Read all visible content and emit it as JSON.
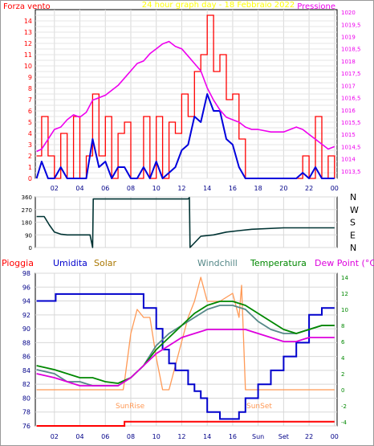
{
  "header": {
    "left_label": "Forza vento",
    "title": "24 hour graph day - 18 Febbraio 2022",
    "right_label": "Pressione"
  },
  "colors": {
    "wind_gust": "#ff0000",
    "wind_avg": "#0000dd",
    "pressure": "#ee00ee",
    "title": "#ffff00",
    "direction": "#003333",
    "rain": "#ff0000",
    "humidity": "#0000cc",
    "solar": "#ff9955",
    "windchill": "#558888",
    "temperature": "#008800",
    "dewpoint": "#dd00dd",
    "axis_red": "#ff0000",
    "axis_green": "#008800",
    "axis_blue": "#000088"
  },
  "x_ticks": [
    "02",
    "04",
    "06",
    "08",
    "10",
    "12",
    "14",
    "16",
    "18",
    "20",
    "22",
    "00"
  ],
  "bottom_x_ticks": [
    "02",
    "04",
    "06",
    "08",
    "10",
    "12",
    "14",
    "16",
    "Sun",
    "Set",
    "22",
    "00"
  ],
  "direction_labels": [
    "N",
    "W",
    "S",
    "E",
    "N"
  ],
  "bottom_legend": {
    "rain": "Pioggia",
    "humidity": "Umidita",
    "solar": "Solar",
    "windchill": "Windchill",
    "temperature": "Temperatura",
    "dewpoint": "Dew Point (°C)"
  },
  "annotations": {
    "sunrise": "SunRise",
    "sunset": "SunSet"
  },
  "chart_data": [
    {
      "type": "line",
      "title": "24 hour graph day - 18 Febbraio 2022",
      "y_left_ticks": [
        0,
        0.5,
        1,
        1.5,
        2,
        2.5,
        3,
        3.5,
        4,
        4.5,
        5,
        5.5,
        6,
        6.5,
        7,
        7.5,
        8,
        8.5,
        9,
        9.5,
        10,
        10.5,
        11,
        11.5,
        12,
        12.5,
        13,
        13.5,
        14,
        14.5
      ],
      "y_left_tick_labels": [
        "0",
        "",
        "1",
        "",
        "2",
        "",
        "3",
        "",
        "4",
        "",
        "5",
        "",
        "6",
        "",
        "7",
        "",
        "8",
        "",
        "9",
        "",
        "10",
        "",
        "11",
        "",
        "12",
        "",
        "13",
        "",
        "14",
        ""
      ],
      "y_right_ticks": [
        "1013,5",
        "1014",
        "1014,5",
        "1015",
        "1015,5",
        "1016",
        "1016,5",
        "1017",
        "1017,5",
        "1018",
        "1018,5",
        "1019",
        "1019,5",
        "1020"
      ],
      "ylim_left": [
        0,
        15
      ],
      "ylim_right": [
        1013.2,
        1020.1
      ],
      "xlim_hours": [
        0.5,
        24.2
      ],
      "series": [
        {
          "name": "Forza vento",
          "x": [
            0.6,
            1.0,
            1.5,
            2.0,
            2.5,
            3.0,
            3.5,
            4.0,
            4.5,
            5.0,
            5.5,
            6.0,
            6.5,
            7.0,
            7.5,
            8.0,
            8.5,
            9.0,
            9.5,
            10.0,
            10.5,
            11.0,
            11.5,
            12.0,
            12.5,
            13.0,
            13.5,
            14.0,
            14.5,
            15.0,
            15.5,
            16.0,
            16.5,
            17.0,
            17.5,
            18.0,
            19.0,
            20.0,
            21.0,
            21.5,
            22.0,
            22.5,
            23.0,
            23.5,
            24.0
          ],
          "values": [
            2,
            5.5,
            2,
            0,
            4,
            0,
            5.5,
            0,
            2,
            7.5,
            2,
            5.5,
            0,
            4,
            5,
            0,
            0,
            5.5,
            0,
            5.5,
            0,
            5,
            4,
            7.5,
            5.5,
            9.5,
            11,
            14.5,
            9.5,
            11,
            7,
            7.5,
            3.5,
            0,
            0,
            0,
            0,
            0,
            0,
            2,
            0,
            5.5,
            0,
            2,
            0
          ]
        },
        {
          "name": "",
          "x": [
            0.6,
            1.0,
            1.5,
            2.0,
            2.5,
            3.0,
            3.5,
            4.0,
            4.5,
            5.0,
            5.5,
            6.0,
            6.5,
            7.0,
            7.5,
            8.0,
            8.5,
            9.0,
            9.5,
            10.0,
            10.5,
            11.0,
            11.5,
            12.0,
            12.5,
            13.0,
            13.5,
            14.0,
            14.5,
            15.0,
            15.5,
            16.0,
            16.5,
            17.0,
            18.0,
            20.0,
            21.0,
            21.5,
            22.0,
            22.5,
            23.0,
            24.0
          ],
          "values": [
            0,
            1.5,
            0,
            0,
            1,
            0,
            0,
            0,
            0,
            3.5,
            1,
            1.5,
            0,
            1,
            1,
            0,
            0,
            1,
            0,
            1.5,
            0,
            0.5,
            1,
            2.5,
            3,
            5.5,
            5,
            7.5,
            6,
            6,
            3.5,
            3,
            1,
            0,
            0,
            0,
            0,
            0.5,
            0,
            1,
            0,
            0
          ]
        },
        {
          "name": "Pressione",
          "x": [
            0.6,
            1.0,
            1.5,
            2.0,
            2.5,
            3.0,
            3.5,
            4.0,
            4.5,
            5.0,
            5.5,
            6.0,
            6.5,
            7.0,
            7.5,
            8.0,
            8.5,
            9.0,
            9.5,
            10.0,
            10.5,
            11.0,
            11.5,
            12.0,
            12.5,
            13.0,
            13.5,
            14.0,
            14.5,
            15.0,
            15.5,
            16.0,
            16.5,
            17.0,
            17.5,
            18.0,
            19.0,
            20.0,
            21.0,
            21.5,
            22.0,
            22.5,
            23.0,
            23.5,
            24.0
          ],
          "values": [
            1014.3,
            1014.4,
            1014.8,
            1015.2,
            1015.3,
            1015.6,
            1015.8,
            1015.7,
            1015.9,
            1016.4,
            1016.5,
            1016.6,
            1016.8,
            1017.0,
            1017.3,
            1017.6,
            1017.9,
            1018.0,
            1018.3,
            1018.5,
            1018.7,
            1018.8,
            1018.6,
            1018.5,
            1018.2,
            1017.9,
            1017.6,
            1016.9,
            1016.4,
            1016.0,
            1015.7,
            1015.6,
            1015.5,
            1015.3,
            1015.2,
            1015.2,
            1015.1,
            1015.1,
            1015.3,
            1015.2,
            1015.0,
            1014.8,
            1014.6,
            1014.4,
            1014.5
          ]
        }
      ]
    },
    {
      "type": "line",
      "title": "",
      "y_ticks": [
        0,
        90,
        180,
        270,
        360
      ],
      "ylim": [
        0,
        360
      ],
      "series": [
        {
          "name": "",
          "x": [
            0.6,
            1.2,
            1.6,
            2.0,
            2.5,
            3.0,
            4.0,
            4.8,
            5.0,
            5.05,
            7.0,
            9.0,
            11.0,
            12.5,
            12.6,
            12.65,
            13.5,
            14.5,
            15.5,
            16.5,
            17.5,
            20.0,
            24.0
          ],
          "values": [
            220,
            220,
            160,
            110,
            95,
            90,
            90,
            90,
            0,
            345,
            345,
            345,
            345,
            345,
            355,
            0,
            80,
            90,
            110,
            120,
            130,
            140,
            140
          ]
        }
      ]
    },
    {
      "type": "line",
      "title": "",
      "y_left_ticks": [
        76,
        78,
        80,
        82,
        84,
        86,
        88,
        90,
        92,
        94,
        96,
        98
      ],
      "y_right_ticks": [
        -4,
        -2,
        0,
        2,
        4,
        6,
        8,
        10,
        12,
        14
      ],
      "ylim_left": [
        76,
        98
      ],
      "ylim_right": [
        -4.5,
        14.5
      ],
      "series": [
        {
          "name": "Umidita",
          "x": [
            0.6,
            2.0,
            2.1,
            7.0,
            8.5,
            9.0,
            10.0,
            10.5,
            11.0,
            11.5,
            12.5,
            13.0,
            13.5,
            14.0,
            15.0,
            15.5,
            16.5,
            17.0,
            18.0,
            19.0,
            20.0,
            21.0,
            22.0,
            23.0,
            24.0
          ],
          "values": [
            94,
            94,
            95,
            95,
            95,
            93,
            90,
            87,
            85,
            84,
            82,
            81,
            80,
            78,
            77,
            77,
            78,
            80,
            82,
            84,
            86,
            88,
            92,
            93,
            93
          ]
        },
        {
          "name": "Solar",
          "x": [
            0.6,
            7.4,
            7.5,
            8.0,
            8.5,
            9.0,
            9.5,
            10.0,
            10.5,
            11.0,
            12.0,
            12.5,
            13.0,
            13.5,
            14.0,
            15.0,
            16.0,
            16.5,
            16.7,
            17.0,
            24.0
          ],
          "values": [
            0,
            0,
            1,
            7,
            10,
            9,
            9,
            4,
            0,
            0,
            6,
            9,
            11,
            14,
            11,
            11,
            12,
            9,
            13,
            0,
            0
          ]
        },
        {
          "name": "Windchill",
          "x": [
            0.6,
            2.0,
            3.0,
            4.0,
            5.0,
            6.0,
            7.0,
            8.0,
            9.0,
            10.0,
            11.0,
            12.0,
            13.0,
            14.0,
            15.0,
            16.0,
            17.0,
            18.0,
            19.0,
            20.0,
            21.0,
            22.0,
            23.0,
            24.0
          ],
          "values": [
            2.5,
            2,
            1,
            1,
            0.5,
            0.5,
            0.5,
            1.5,
            3,
            5.5,
            7,
            8,
            9,
            10,
            10.5,
            10.5,
            10,
            8.5,
            7.5,
            7,
            7,
            7.5,
            8,
            8
          ]
        },
        {
          "name": "Temperatura",
          "x": [
            0.6,
            2.0,
            3.0,
            4.0,
            5.0,
            6.0,
            7.0,
            8.0,
            9.0,
            10.0,
            11.0,
            12.0,
            13.0,
            14.0,
            15.0,
            16.0,
            17.0,
            18.0,
            19.0,
            20.0,
            21.0,
            22.0,
            23.0,
            24.0
          ],
          "values": [
            3,
            2.5,
            2,
            1.5,
            1.5,
            1,
            0.8,
            1.5,
            3,
            5,
            6.5,
            8,
            9.5,
            10.5,
            11,
            11,
            10.5,
            9.5,
            8.5,
            7.5,
            7,
            7.5,
            8,
            8
          ]
        },
        {
          "name": "Dew Point (°C)",
          "x": [
            0.6,
            2.0,
            3.0,
            4.0,
            5.0,
            6.0,
            7.0,
            8.0,
            9.0,
            10.0,
            11.0,
            12.0,
            13.0,
            14.0,
            15.0,
            16.0,
            17.0,
            18.0,
            19.0,
            20.0,
            21.0,
            22.0,
            23.0,
            24.0
          ],
          "values": [
            2,
            1.5,
            1,
            0.5,
            0.5,
            0.5,
            0.5,
            1.5,
            3,
            4.5,
            5.5,
            6.5,
            7,
            7.5,
            7.5,
            7.5,
            7.5,
            7,
            6.5,
            6,
            6,
            6.5,
            6.5,
            6.5
          ]
        },
        {
          "name": "Pioggia",
          "x": [
            0.6,
            7.4,
            7.5,
            24.0
          ],
          "values": [
            76,
            76,
            76.6,
            76.6
          ]
        }
      ]
    }
  ]
}
